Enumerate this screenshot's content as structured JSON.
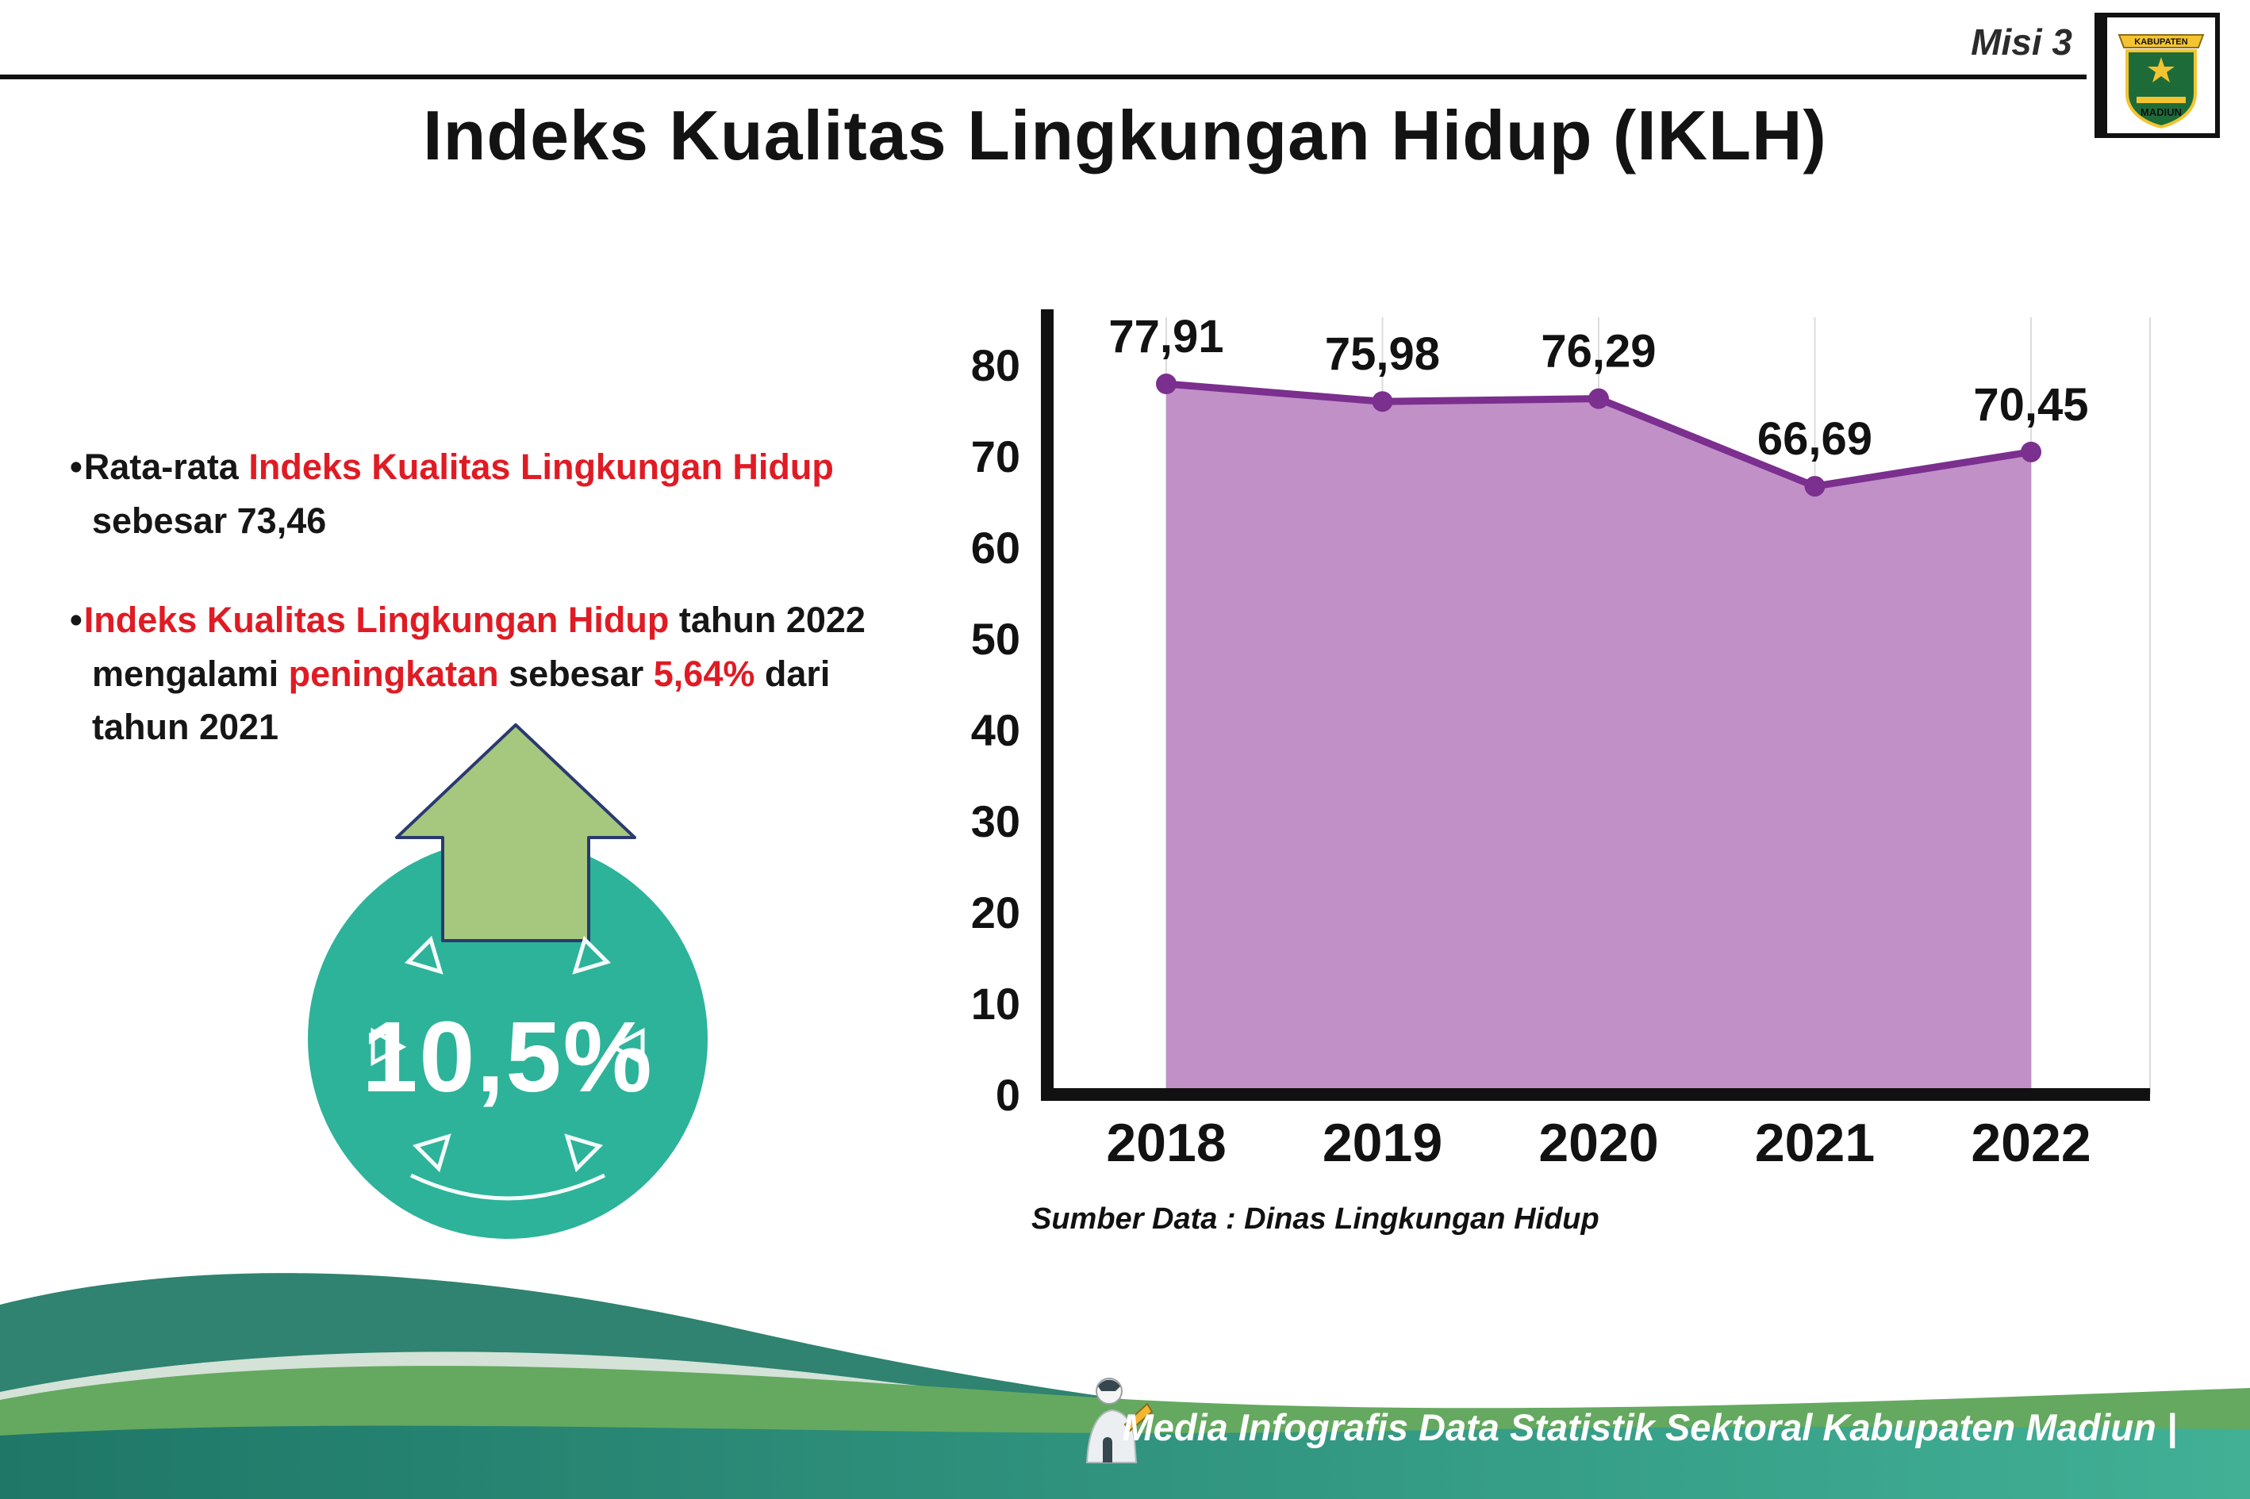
{
  "header": {
    "misi_label": "Misi 3",
    "logo_top": "KABUPATEN",
    "logo_bottom": "MADIUN"
  },
  "title": "Indeks Kualitas Lingkungan Hidup (IKLH)",
  "bullets": [
    {
      "segments": [
        {
          "t": "Rata-rata ",
          "c": "dark"
        },
        {
          "t": "Indeks Kualitas Lingkungan Hidup",
          "c": "red"
        },
        {
          "br": true
        },
        {
          "t": "sebesar 73,46",
          "c": "dark"
        }
      ]
    },
    {
      "segments": [
        {
          "t": "Indeks Kualitas Lingkungan Hidup",
          "c": "red"
        },
        {
          "t": " tahun 2022",
          "c": "dark"
        },
        {
          "br": true
        },
        {
          "t": "mengalami ",
          "c": "dark"
        },
        {
          "t": "peningkatan",
          "c": "red"
        },
        {
          "t": " sebesar ",
          "c": "dark"
        },
        {
          "t": "5,64%",
          "c": "red"
        },
        {
          "t": " dari",
          "c": "dark"
        },
        {
          "br": true
        },
        {
          "t": "tahun 2021",
          "c": "dark"
        }
      ]
    }
  ],
  "badge": {
    "value": "10,5%"
  },
  "chart_data": {
    "type": "area",
    "title": "Indeks Kualitas Lingkungan Hidup (IKLH)",
    "categories": [
      "2018",
      "2019",
      "2020",
      "2021",
      "2022"
    ],
    "values": [
      77.91,
      75.98,
      76.29,
      66.69,
      70.45
    ],
    "labels": [
      "77,91",
      "75,98",
      "76,29",
      "66,69",
      "70,45"
    ],
    "ylim": [
      0,
      80
    ],
    "yticks": [
      0,
      10,
      20,
      30,
      40,
      50,
      60,
      70,
      80
    ],
    "grid": "vertical-light",
    "legend": "none",
    "source": "Sumber Data : Dinas Lingkungan Hidup",
    "colors": {
      "fill": "#c190c7",
      "line": "#7b2f8e",
      "axis": "#111111",
      "grid": "#dcdcdc"
    }
  },
  "footer": {
    "credit": "Media Infografis Data Statistik Sektoral Kabupaten Madiun |"
  },
  "colors": {
    "red": "#e01b24",
    "teal": "#2db39a",
    "arrow_green": "#a6c87e",
    "dark": "#161616"
  }
}
